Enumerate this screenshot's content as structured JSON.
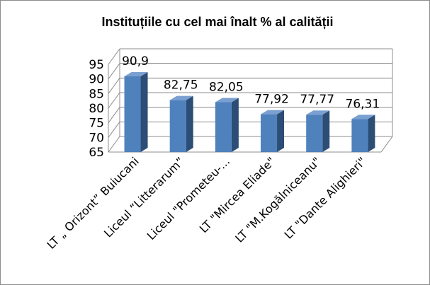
{
  "chart_data": {
    "type": "bar",
    "title": "Instituțiile  cu cel mai înalt %  al calității",
    "categories": [
      "LT „ Orizont” Buiucani",
      "Liceul “Litterarum”",
      "Liceul \"Prometeu-...",
      "LT \"Mircea Eliade\"",
      "LT \"M.Kogălniceanu\"",
      "LT \"Dante Alighieri\""
    ],
    "values": [
      90.9,
      82.75,
      82.05,
      77.92,
      77.77,
      76.31
    ],
    "data_labels": [
      "90,9",
      "82,75",
      "82,05",
      "77,92",
      "77,77",
      "76,31"
    ],
    "ylim": [
      65,
      95
    ],
    "yticks": [
      "65",
      "70",
      "75",
      "80",
      "85",
      "90",
      "95"
    ],
    "xlabel": "",
    "ylabel": "",
    "grid": true,
    "bar_color": "#4f81bd",
    "bar_side_color": "#2c4d75",
    "bar_top_color": "#7a9fd0"
  }
}
